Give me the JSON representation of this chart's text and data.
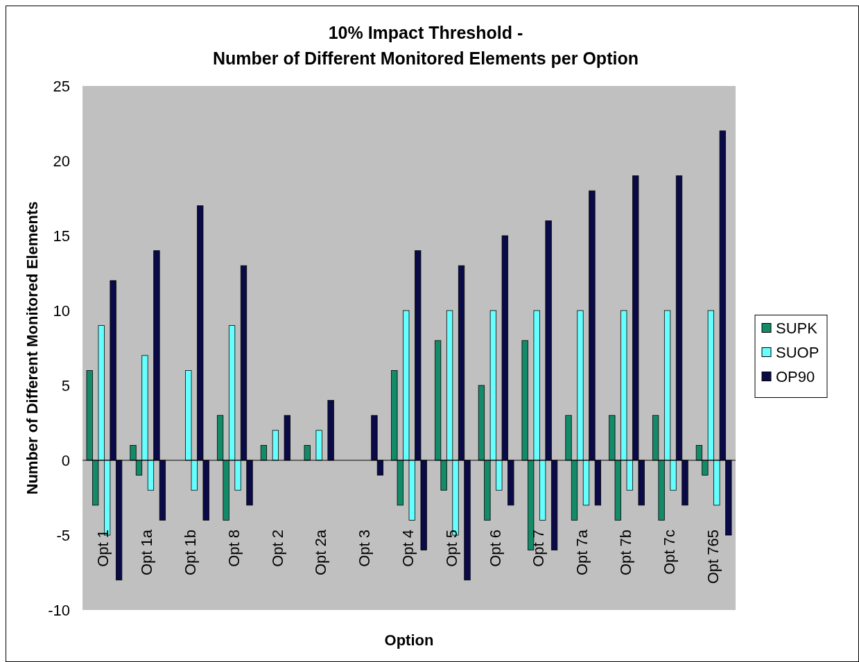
{
  "chart_data": {
    "type": "bar",
    "title": "10% Impact Threshold -\nNumber of Different Monitored Elements per Option",
    "xlabel": "Option",
    "ylabel": "Number of Different Monitored Elements",
    "categories": [
      "Opt 1",
      "Opt 1a",
      "Opt 1b",
      "Opt 8",
      "Opt 2",
      "Opt 2a",
      "Opt 3",
      "Opt 4",
      "Opt 5",
      "Opt 6",
      "Opt 7",
      "Opt 7a",
      "Opt 7b",
      "Opt 7c",
      "Opt 765"
    ],
    "series": [
      {
        "name": "SUPK",
        "color": "#138a68",
        "values": [
          6,
          1,
          0,
          3,
          1,
          1,
          0,
          6,
          8,
          5,
          8,
          3,
          3,
          3,
          1
        ]
      },
      {
        "color": "#138a68",
        "values": [
          -3,
          -1,
          0,
          -4,
          0,
          0,
          0,
          -3,
          -2,
          -4,
          -6,
          -4,
          -4,
          -4,
          -1
        ]
      },
      {
        "name": "SUOP",
        "color": "#66ffff",
        "values": [
          9,
          7,
          6,
          9,
          2,
          2,
          0,
          10,
          10,
          10,
          10,
          10,
          10,
          10,
          10
        ]
      },
      {
        "color": "#66ffff",
        "values": [
          -5,
          -2,
          -2,
          -2,
          0,
          0,
          0,
          -4,
          -5,
          -2,
          -4,
          -3,
          -2,
          -2,
          -3
        ]
      },
      {
        "name": "OP90",
        "color": "#0a0a48",
        "values": [
          12,
          14,
          17,
          13,
          3,
          4,
          3,
          14,
          13,
          15,
          16,
          18,
          19,
          19,
          22
        ]
      },
      {
        "color": "#0a0a48",
        "values": [
          -8,
          -4,
          -4,
          -3,
          0,
          0,
          -1,
          -6,
          -8,
          -3,
          -6,
          -3,
          -3,
          -3,
          -5
        ]
      }
    ],
    "ylim": [
      -10,
      25
    ],
    "yticks": [
      -10,
      -5,
      0,
      5,
      10,
      15,
      20,
      25
    ],
    "legend": "right"
  }
}
